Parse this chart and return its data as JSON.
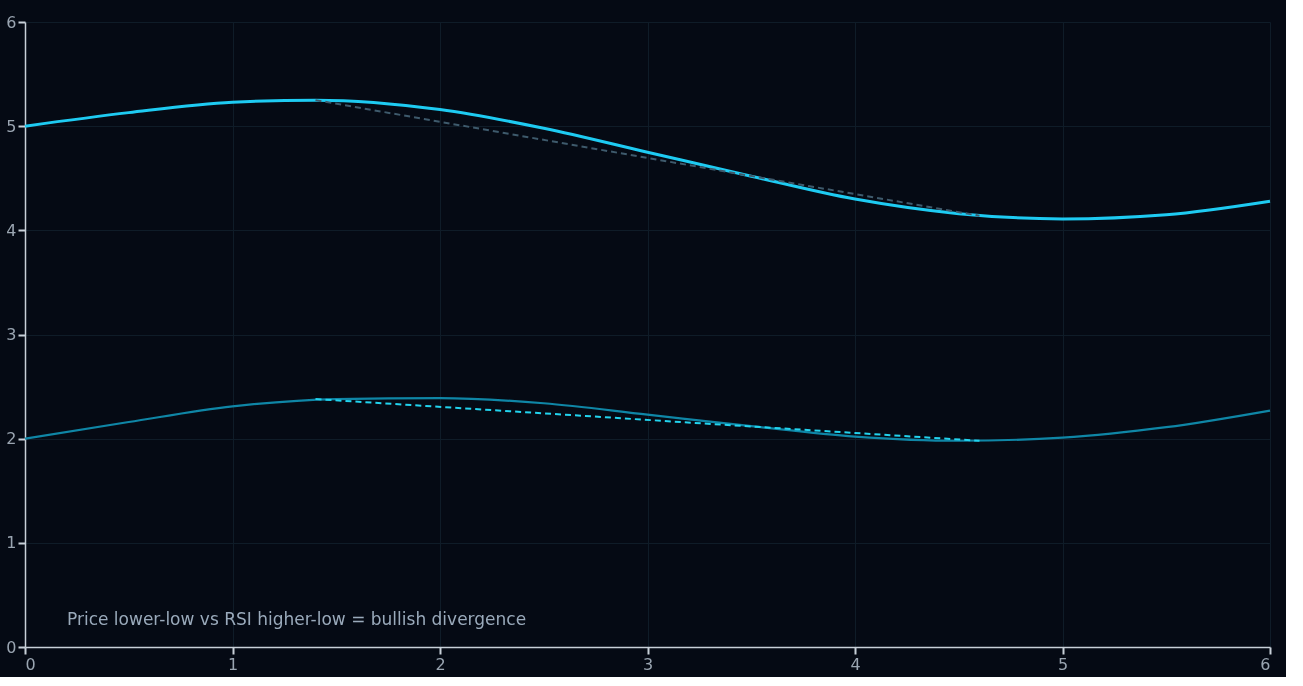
{
  "chart_data": {
    "type": "line",
    "xlim": [
      0,
      6
    ],
    "ylim": [
      0,
      6
    ],
    "xticks": [
      0,
      1,
      2,
      3,
      4,
      5,
      6
    ],
    "yticks": [
      0,
      1,
      2,
      3,
      4,
      5,
      6
    ],
    "grid": true,
    "annotations": [
      "Price lower-low vs RSI higher-low = bullish divergence"
    ],
    "series": [
      {
        "color": "#1ecbf2",
        "line_style": "solid",
        "x": [
          0,
          0.5,
          1,
          1.4,
          2,
          2.5,
          3,
          3.5,
          4,
          4.5,
          5,
          5.5,
          6
        ],
        "values": [
          5.0,
          5.13,
          5.23,
          5.25,
          5.16,
          4.98,
          4.75,
          4.52,
          4.3,
          4.16,
          4.11,
          4.15,
          4.28
        ]
      },
      {
        "color": "#0f86a6",
        "line_style": "solid",
        "x": [
          0,
          0.5,
          1,
          1.5,
          2,
          2.5,
          3,
          3.5,
          4,
          4.5,
          5,
          5.5,
          6
        ],
        "values": [
          2.0,
          2.16,
          2.31,
          2.38,
          2.39,
          2.34,
          2.23,
          2.12,
          2.02,
          1.98,
          2.01,
          2.11,
          2.27
        ]
      },
      {
        "color": "#3e5a6c",
        "line_style": "dashed",
        "x": [
          1.4,
          4.6
        ],
        "values": [
          5.25,
          4.14
        ]
      },
      {
        "color": "#22d3ee",
        "line_style": "dashed",
        "x": [
          1.4,
          4.6
        ],
        "values": [
          2.38,
          1.98
        ]
      }
    ]
  }
}
